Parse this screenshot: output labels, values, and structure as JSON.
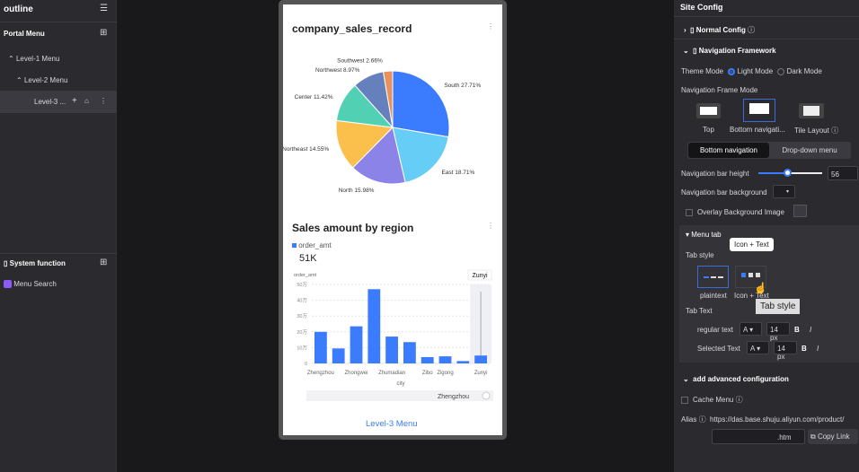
{
  "outline": {
    "title": "outline",
    "portal_menu": "Portal Menu",
    "level1": "Level-1 Menu",
    "level2": "Level-2 Menu",
    "level3": "Level-3 ...",
    "system_function": "System function",
    "menu_search": "Menu Search"
  },
  "pie": {
    "title": "company_sales_record"
  },
  "bar": {
    "title": "Sales amount by region",
    "legend": "order_amt",
    "kpi": "51K",
    "tooltip": "Zunyi",
    "slider_label": "Zhengzhou"
  },
  "footer_tab": "Level-3 Menu",
  "chart_data": [
    {
      "type": "pie",
      "title": "company_sales_record",
      "categories": [
        "South",
        "East",
        "North",
        "Northeast",
        "Center",
        "Northwest",
        "Southwest"
      ],
      "values": [
        27.71,
        18.71,
        15.98,
        14.55,
        11.42,
        8.97,
        2.66
      ],
      "labels": [
        "South 27.71%",
        "East 18.71%",
        "North 15.98%",
        "Northeast 14.55%",
        "Center 11.42%",
        "Northwest 8.97%",
        "Southwest 2.66%"
      ],
      "colors": [
        "#3b7cff",
        "#65cdf6",
        "#8c83e8",
        "#fbc04b",
        "#52d0b3",
        "#6680be",
        "#e8905e"
      ]
    },
    {
      "type": "bar",
      "title": "Sales amount by region",
      "ylabel": "order_amt",
      "xlabel": "city",
      "ylim": [
        0,
        50
      ],
      "yticks": [
        "0",
        "10万",
        "20万",
        "30万",
        "40万",
        "50万"
      ],
      "xticklabels": [
        "Zhengzhou",
        "",
        "Zhongwei",
        "",
        "Zhumadian",
        "",
        "Zibo",
        "Zigong",
        "",
        "Zunyi"
      ],
      "values": [
        20,
        9.5,
        23.5,
        47,
        17,
        13.5,
        4,
        4.5,
        1.5,
        5
      ],
      "legend": "order_amt",
      "color": "#3b7cff",
      "grid": true
    }
  ],
  "config": {
    "title": "Site Config",
    "normal": "Normal Config",
    "nav": "Navigation Framework",
    "theme_mode": "Theme Mode",
    "light": "Light Mode",
    "dark": "Dark Mode",
    "frame_mode": "Navigation Frame Mode",
    "frames": [
      "Top",
      "Bottom navigati...",
      "Tile Layout"
    ],
    "seg": [
      "Bottom navigation",
      "Drop-down menu"
    ],
    "bar_height": "Navigation bar height",
    "bar_height_value": "56",
    "bar_height_fraction": 0.45,
    "bar_bg": "Navigation bar background",
    "overlay": "Overlay Background Image",
    "menu_tab": "Menu tab",
    "tab_style": "Tab style",
    "styles": [
      "plaintext",
      "Icon + Text"
    ],
    "tip_top": "Icon + Text",
    "tip_bottom": "Tab style",
    "tab_text": "Tab Text",
    "regular": "regular text",
    "selected": "Selected Text",
    "font_a": "A",
    "size": "14 px",
    "bold": "B",
    "italic": "I",
    "advanced": "add advanced configuration",
    "cache": "Cache Menu",
    "alias": "Alias",
    "url": "https://das.base.shuju.aliyun.com/product/",
    "htm": ".htm",
    "copy": "Copy Link"
  }
}
